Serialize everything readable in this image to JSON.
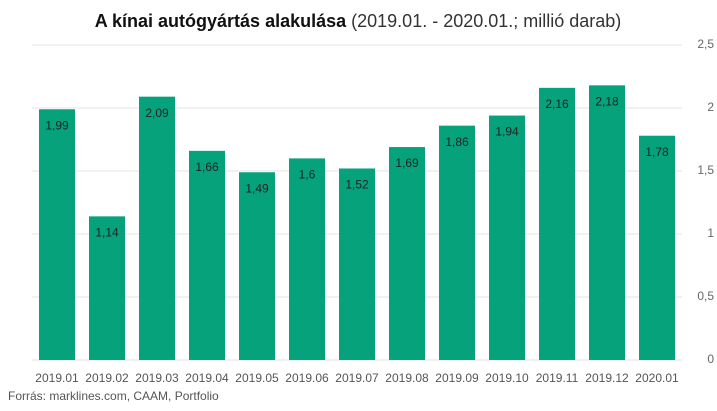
{
  "chart_data": {
    "type": "bar",
    "title": "A kínai autógyártás alakulása",
    "subtitle": "(2019.01. - 2020.01.; millió darab)",
    "source": "Forrás:  marklines.com,  CAAM,  Portfolio",
    "categories": [
      "2019.01",
      "2019.02",
      "2019.03",
      "2019.04",
      "2019.05",
      "2019.06",
      "2019.07",
      "2019.08",
      "2019.09",
      "2019.10",
      "2019.11",
      "2019.12",
      "2020.01"
    ],
    "values": [
      1.99,
      1.14,
      2.09,
      1.66,
      1.49,
      1.6,
      1.52,
      1.69,
      1.86,
      1.94,
      2.16,
      2.18,
      1.78
    ],
    "value_labels": [
      "1,99",
      "1,14",
      "2,09",
      "1,66",
      "1,49",
      "1,6",
      "1,52",
      "1,69",
      "1,86",
      "1,94",
      "2,16",
      "2,18",
      "1,78"
    ],
    "color": "#05a27b",
    "ylim": [
      0,
      2.5
    ],
    "yticks": [
      0,
      {
        "value": 0.5,
        "label": "0,5"
      },
      1,
      {
        "value": 1.5,
        "label": "1,5"
      },
      2,
      {
        "value": 2.5,
        "label": "2,5"
      }
    ],
    "grid": true
  }
}
